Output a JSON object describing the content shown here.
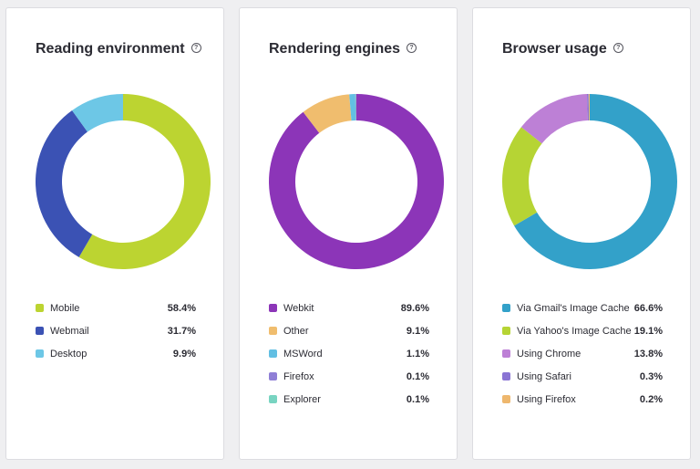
{
  "chart_data": [
    {
      "type": "pie",
      "title": "Reading environment",
      "help_icon": "question-circle-icon",
      "slices": [
        {
          "label": "Mobile",
          "value": 58.4,
          "display": "58.4%",
          "color": "#bcd431"
        },
        {
          "label": "Webmail",
          "value": 31.7,
          "display": "31.7%",
          "color": "#3b52b4"
        },
        {
          "label": "Desktop",
          "value": 9.9,
          "display": "9.9%",
          "color": "#6dc7e6"
        }
      ]
    },
    {
      "type": "pie",
      "title": "Rendering engines",
      "help_icon": "question-circle-icon",
      "slices": [
        {
          "label": "Webkit",
          "value": 89.6,
          "display": "89.6%",
          "color": "#8c35b8"
        },
        {
          "label": "Other",
          "value": 9.1,
          "display": "9.1%",
          "color": "#f0bd6e"
        },
        {
          "label": "MSWord",
          "value": 1.1,
          "display": "1.1%",
          "color": "#62bfe3"
        },
        {
          "label": "Firefox",
          "value": 0.1,
          "display": "0.1%",
          "color": "#8f7fd6"
        },
        {
          "label": "Explorer",
          "value": 0.1,
          "display": "0.1%",
          "color": "#78d4c1"
        }
      ]
    },
    {
      "type": "pie",
      "title": "Browser usage",
      "help_icon": "question-circle-icon",
      "slices": [
        {
          "label": "Via Gmail's Image Cache",
          "value": 66.6,
          "display": "66.6%",
          "color": "#33a1c9"
        },
        {
          "label": "Via Yahoo's Image Cache",
          "value": 19.1,
          "display": "19.1%",
          "color": "#b6d434"
        },
        {
          "label": "Using Chrome",
          "value": 13.8,
          "display": "13.8%",
          "color": "#bd80d6"
        },
        {
          "label": "Using Safari",
          "value": 0.3,
          "display": "0.3%",
          "color": "#8a74d4"
        },
        {
          "label": "Using Firefox",
          "value": 0.2,
          "display": "0.2%",
          "color": "#eeb76d"
        }
      ]
    }
  ]
}
